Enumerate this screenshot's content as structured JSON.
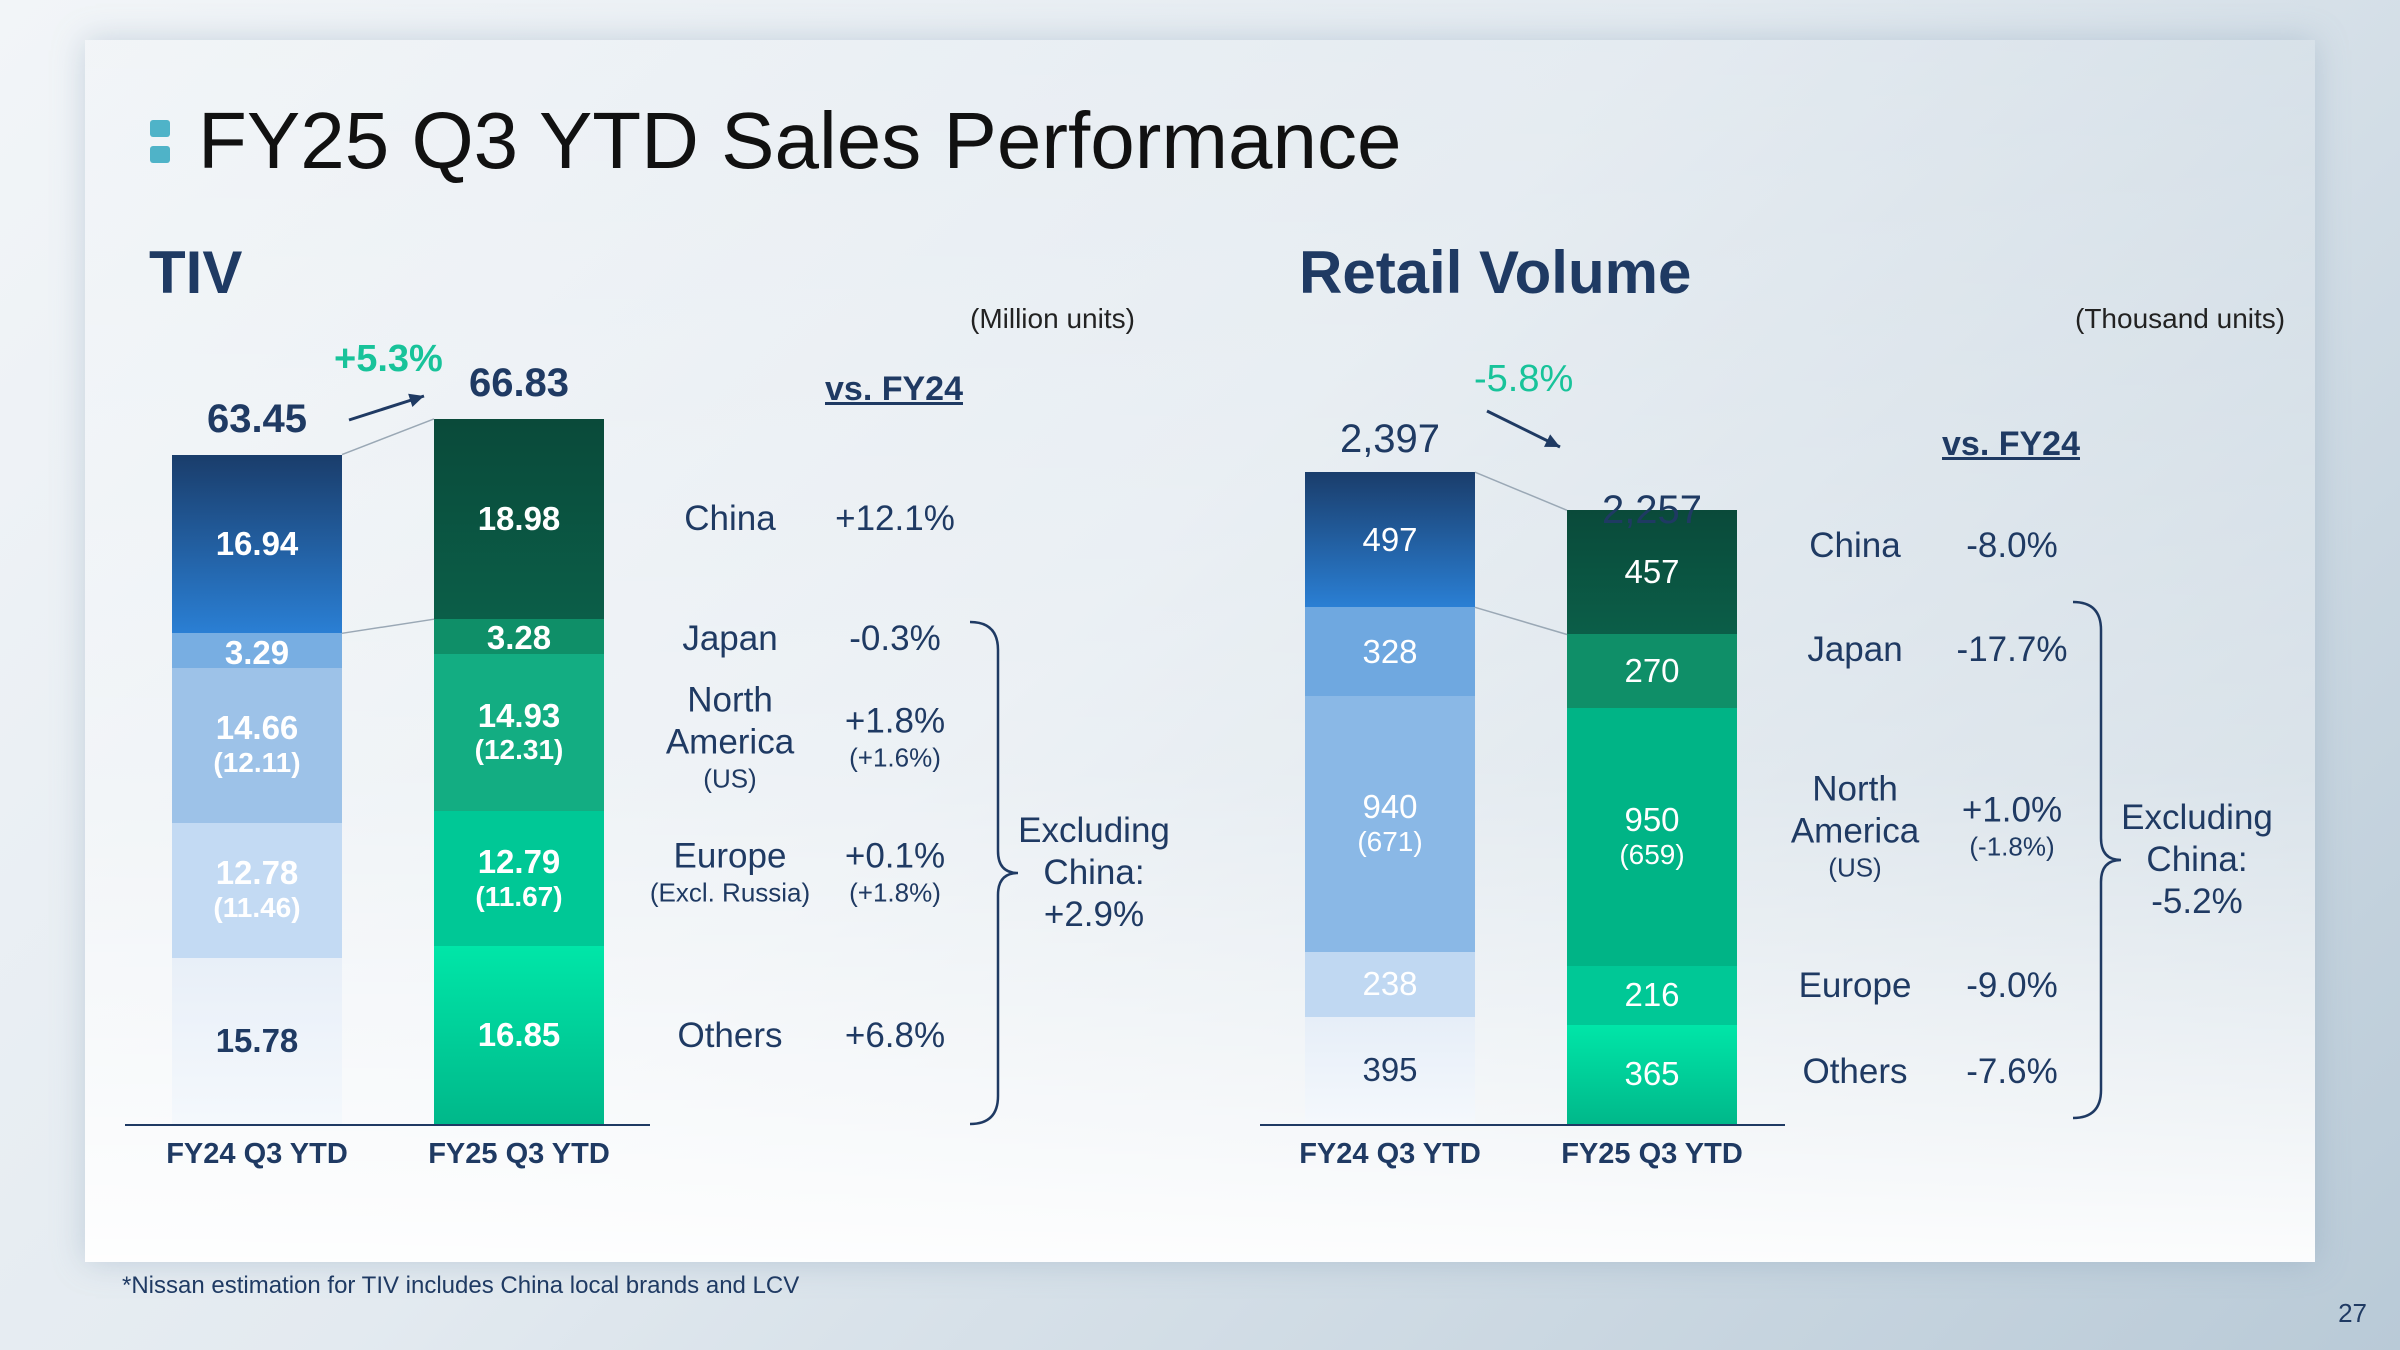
{
  "page": {
    "title": "FY25 Q3 YTD Sales Performance",
    "footnote": "*Nissan estimation for TIV includes China local brands and LCV",
    "page_number": "27"
  },
  "chart_data": [
    {
      "type": "bar",
      "stacked": true,
      "title": "TIV",
      "unit_label": "(Million units)",
      "categories": [
        "FY24 Q3 YTD",
        "FY25 Q3 YTD"
      ],
      "totals": [
        "63.45",
        "66.83"
      ],
      "growth": "+5.3%",
      "vs_label": "vs. FY24",
      "series": [
        {
          "name": "China",
          "values": [
            16.94,
            18.98
          ],
          "labels": [
            "16.94",
            "18.98"
          ],
          "change": "+12.1%"
        },
        {
          "name": "Japan",
          "values": [
            3.29,
            3.28
          ],
          "labels": [
            "3.29",
            "3.28"
          ],
          "change": "-0.3%"
        },
        {
          "name": "North America",
          "sub": "(US)",
          "values": [
            14.66,
            14.93
          ],
          "labels": [
            "14.66",
            "14.93"
          ],
          "sub_labels": [
            "(12.11)",
            "(12.31)"
          ],
          "change": "+1.8%",
          "sub_change": "(+1.6%)"
        },
        {
          "name": "Europe",
          "sub": "(Excl. Russia)",
          "values": [
            12.78,
            12.79
          ],
          "labels": [
            "12.78",
            "12.79"
          ],
          "sub_labels": [
            "(11.46)",
            "(11.67)"
          ],
          "change": "+0.1%",
          "sub_change": "(+1.8%)"
        },
        {
          "name": "Others",
          "values": [
            15.78,
            16.85
          ],
          "labels": [
            "15.78",
            "16.85"
          ],
          "change": "+6.8%"
        }
      ],
      "excluding_china": {
        "line1": "Excluding",
        "line2": "China:",
        "value": "+2.9%"
      },
      "colors": {
        "bar1": [
          "#2a7fd4",
          "#78aee2",
          "#9dc2e8",
          "#c3daf3",
          "#e8eff8"
        ],
        "bar2": [
          "#0b5e48",
          "#0f8f68",
          "#13ad82",
          "#00c896",
          "#00e6a8"
        ]
      }
    },
    {
      "type": "bar",
      "stacked": true,
      "title": "Retail Volume",
      "unit_label": "(Thousand units)",
      "categories": [
        "FY24 Q3 YTD",
        "FY25 Q3 YTD"
      ],
      "totals": [
        "2,397",
        "2,257"
      ],
      "growth": "-5.8%",
      "vs_label": "vs. FY24",
      "series": [
        {
          "name": "China",
          "values": [
            497,
            457
          ],
          "labels": [
            "497",
            "457"
          ],
          "change": "-8.0%"
        },
        {
          "name": "Japan",
          "values": [
            328,
            270
          ],
          "labels": [
            "328",
            "270"
          ],
          "change": "-17.7%"
        },
        {
          "name": "North America",
          "sub": "(US)",
          "values": [
            940,
            950
          ],
          "labels": [
            "940",
            "950"
          ],
          "sub_labels": [
            "(671)",
            "(659)"
          ],
          "change": "+1.0%",
          "sub_change": "(-1.8%)"
        },
        {
          "name": "Europe",
          "values": [
            238,
            216
          ],
          "labels": [
            "238",
            "216"
          ],
          "change": "-9.0%"
        },
        {
          "name": "Others",
          "values": [
            395,
            365
          ],
          "labels": [
            "395",
            "365"
          ],
          "change": "-7.6%"
        }
      ],
      "excluding_china": {
        "line1": "Excluding",
        "line2": "China:",
        "value": "-5.2%"
      },
      "colors": {
        "bar1": [
          "#2a7fd4",
          "#6fa8e0",
          "#8ab8e6",
          "#c0d8f2",
          "#e6eef8"
        ],
        "bar2": [
          "#0b5e48",
          "#0f8f68",
          "#00b486",
          "#00c896",
          "#00e6a8"
        ]
      }
    }
  ]
}
